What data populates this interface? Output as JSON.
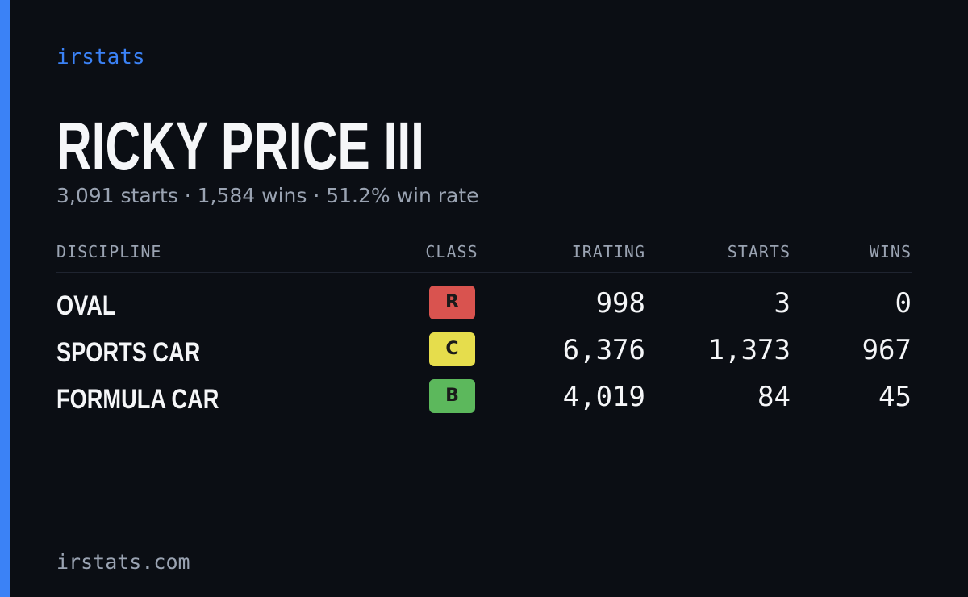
{
  "brand": "irstats",
  "driver": {
    "name": "RICKY PRICE III",
    "summary": "3,091 starts · 1,584 wins · 51.2% win rate"
  },
  "table": {
    "headers": [
      "DISCIPLINE",
      "CLASS",
      "IRATING",
      "STARTS",
      "WINS"
    ],
    "rows": [
      {
        "discipline": "OVAL",
        "class": "R",
        "class_color": "#d9534f",
        "irating": "998",
        "starts": "3",
        "wins": "0"
      },
      {
        "discipline": "SPORTS CAR",
        "class": "C",
        "class_color": "#e6dd4c",
        "irating": "6,376",
        "starts": "1,373",
        "wins": "967"
      },
      {
        "discipline": "FORMULA CAR",
        "class": "B",
        "class_color": "#5cb85c",
        "irating": "4,019",
        "starts": "84",
        "wins": "45"
      }
    ]
  },
  "footer": "irstats.com"
}
